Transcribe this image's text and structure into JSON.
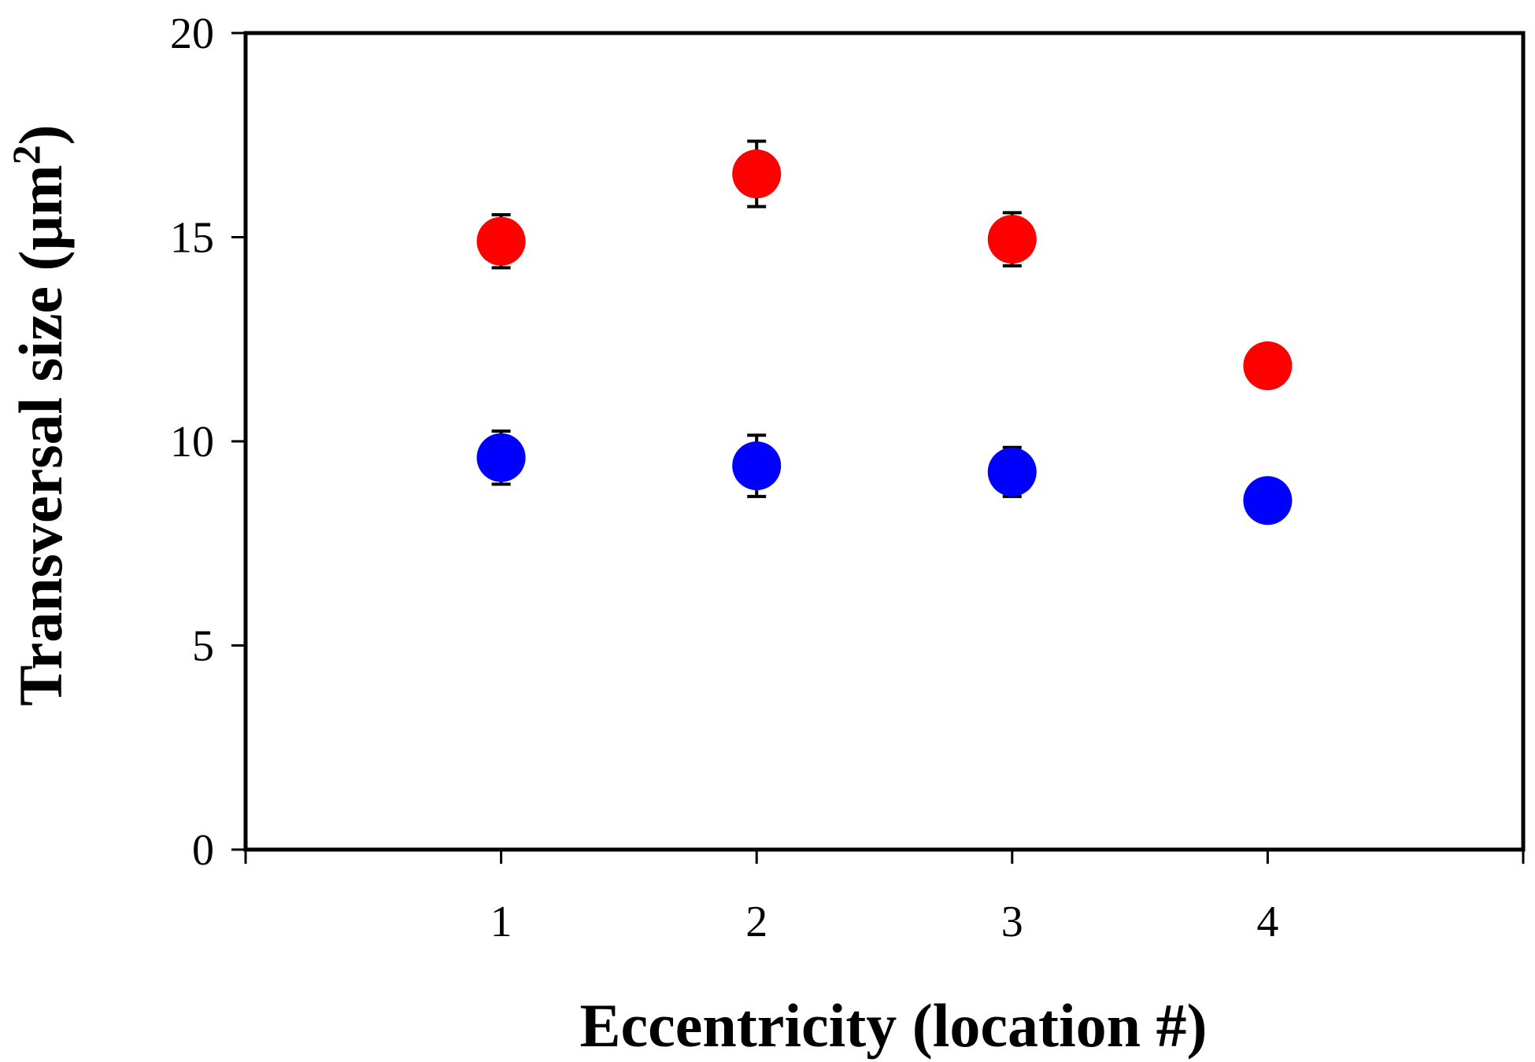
{
  "chart_data": {
    "type": "scatter",
    "xlabel": "Eccentricity (location #)",
    "ylabel": {
      "main": "Transversal size (μm",
      "sup": "2",
      "close": ")"
    },
    "xlim": [
      0,
      5
    ],
    "ylim": [
      0,
      20
    ],
    "xticks": [
      1,
      2,
      3,
      4
    ],
    "yticks": [
      0,
      5,
      10,
      15,
      20
    ],
    "grid": false,
    "x": [
      1,
      2,
      3,
      4
    ],
    "series": [
      {
        "color": "#ff0000",
        "values": [
          14.9,
          16.55,
          14.95,
          11.85
        ],
        "err": [
          0.65,
          0.8,
          0.65,
          0.0
        ]
      },
      {
        "color": "#0000ff",
        "values": [
          9.6,
          9.4,
          9.25,
          8.55
        ],
        "err": [
          0.65,
          0.75,
          0.6,
          0.0
        ]
      }
    ]
  }
}
